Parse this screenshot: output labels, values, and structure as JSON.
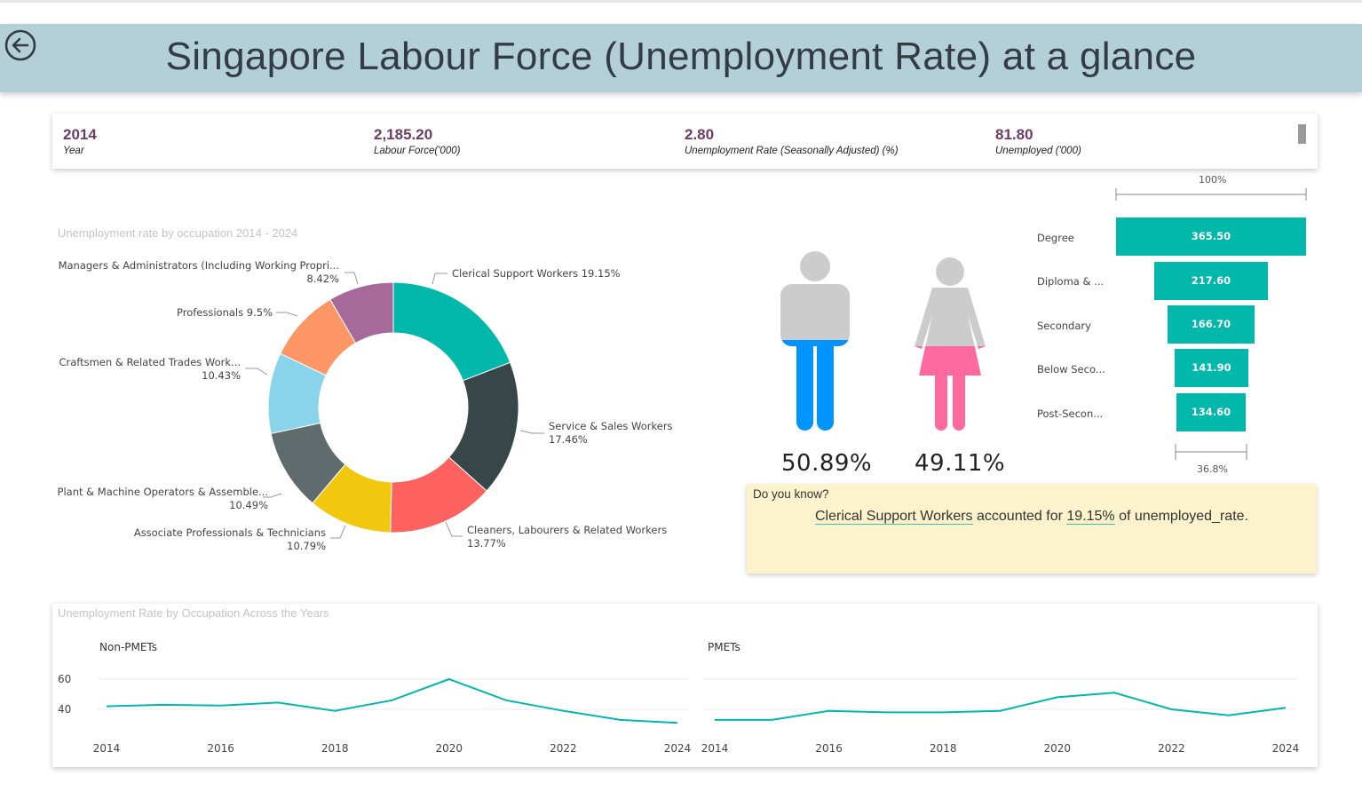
{
  "header": {
    "title": "Singapore Labour Force (Unemployment Rate) at a glance",
    "back_icon": "back-arrow-circle-icon"
  },
  "kpis": [
    {
      "value": "2014",
      "label": "Year"
    },
    {
      "value": "2,185.20",
      "label": "Labour Force('000)"
    },
    {
      "value": "2.80",
      "label": "Unemployment Rate (Seasonally Adjusted) (%)"
    },
    {
      "value": "81.80",
      "label": "Unemployed ('000)"
    }
  ],
  "donut": {
    "title": "Unemployment rate by occupation 2014 - 2024",
    "labels": {
      "clerical": "Clerical Support Workers 19.15%",
      "service_name": "Service & Sales Workers",
      "service_pct": "17.46%",
      "cleaners_name": "Cleaners, Labourers & Related Workers",
      "cleaners_pct": "13.77%",
      "associate_name": "Associate Professionals & Technicians",
      "associate_pct": "10.79%",
      "plant_name": "Plant & Machine Operators & Assemble...",
      "plant_pct": "10.49%",
      "craftsmen_name": "Craftsmen & Related Trades Work...",
      "craftsmen_pct": "10.43%",
      "professionals": "Professionals 9.5%",
      "managers_name": "Managers & Administrators (Including Working Propri...",
      "managers_pct": "8.42%"
    }
  },
  "gender": {
    "male_pct": "50.89%",
    "female_pct": "49.11%",
    "male_value": 50.89,
    "female_value": 49.11
  },
  "funnel": {
    "top_label": "100%",
    "bottom_label": "36.8%",
    "items": [
      {
        "label": "Degree",
        "value": "365.50"
      },
      {
        "label": "Diploma & ...",
        "value": "217.60"
      },
      {
        "label": "Secondary",
        "value": "166.70"
      },
      {
        "label": "Below Seco...",
        "value": "141.90"
      },
      {
        "label": "Post-Secon...",
        "value": "134.60"
      }
    ]
  },
  "did_you_know": {
    "heading": "Do you know?",
    "subject": "Clerical Support Workers",
    "mid": " accounted for ",
    "pct": "19.15%",
    "tail": " of unemployed_rate."
  },
  "line_section": {
    "title": "Unemployment Rate by Occupation Across the Years"
  },
  "colors": {
    "teal": "#01b8aa",
    "dark": "#374649",
    "coral": "#fd625e",
    "yellow": "#f2c80f",
    "slate": "#5f6b6d",
    "sky": "#8ad4eb",
    "orange": "#fe9666",
    "purple": "#a66999",
    "male_blue": "#0094ff",
    "female_pink": "#ff6a9e",
    "figure_grey": "#cccccc",
    "title_purple": "#6b3d63",
    "header_bg": "#b3d0d9",
    "note_bg": "#fcf3cc"
  },
  "chart_data": [
    {
      "type": "pie",
      "title": "Unemployment rate by occupation 2014 - 2024",
      "categories": [
        "Clerical Support Workers",
        "Service & Sales Workers",
        "Cleaners, Labourers & Related Workers",
        "Associate Professionals & Technicians",
        "Plant & Machine Operators & Assemble...",
        "Craftsmen & Related Trades Work...",
        "Professionals",
        "Managers & Administrators (Including Working Propri..."
      ],
      "values": [
        19.15,
        17.46,
        13.77,
        10.79,
        10.49,
        10.43,
        9.5,
        8.42
      ],
      "colors": [
        "#01b8aa",
        "#374649",
        "#fd625e",
        "#f2c80f",
        "#5f6b6d",
        "#8ad4eb",
        "#fe9666",
        "#a66999"
      ]
    },
    {
      "type": "bar",
      "categories": [
        "Degree",
        "Diploma & ...",
        "Secondary",
        "Below Seco...",
        "Post-Secon..."
      ],
      "values": [
        365.5,
        217.6,
        166.7,
        141.9,
        134.6
      ]
    },
    {
      "type": "line",
      "title": "Non-PMETs",
      "x": [
        2014,
        2015,
        2016,
        2017,
        2018,
        2019,
        2020,
        2021,
        2022,
        2023,
        2024
      ],
      "values": [
        42,
        43,
        42.5,
        44.5,
        39,
        46,
        60,
        46,
        39,
        33,
        31
      ],
      "yticks": [
        40,
        60
      ],
      "xticks": [
        2014,
        2016,
        2018,
        2020,
        2022,
        2024
      ],
      "ylim": [
        25,
        65
      ]
    },
    {
      "type": "line",
      "title": "PMETs",
      "x": [
        2014,
        2015,
        2016,
        2017,
        2018,
        2019,
        2020,
        2021,
        2022,
        2023,
        2024
      ],
      "values": [
        33,
        33,
        39,
        38,
        38,
        39,
        48,
        51,
        40,
        36,
        41
      ],
      "xticks": [
        2014,
        2016,
        2018,
        2020,
        2022,
        2024
      ],
      "ylim": [
        25,
        65
      ]
    }
  ]
}
